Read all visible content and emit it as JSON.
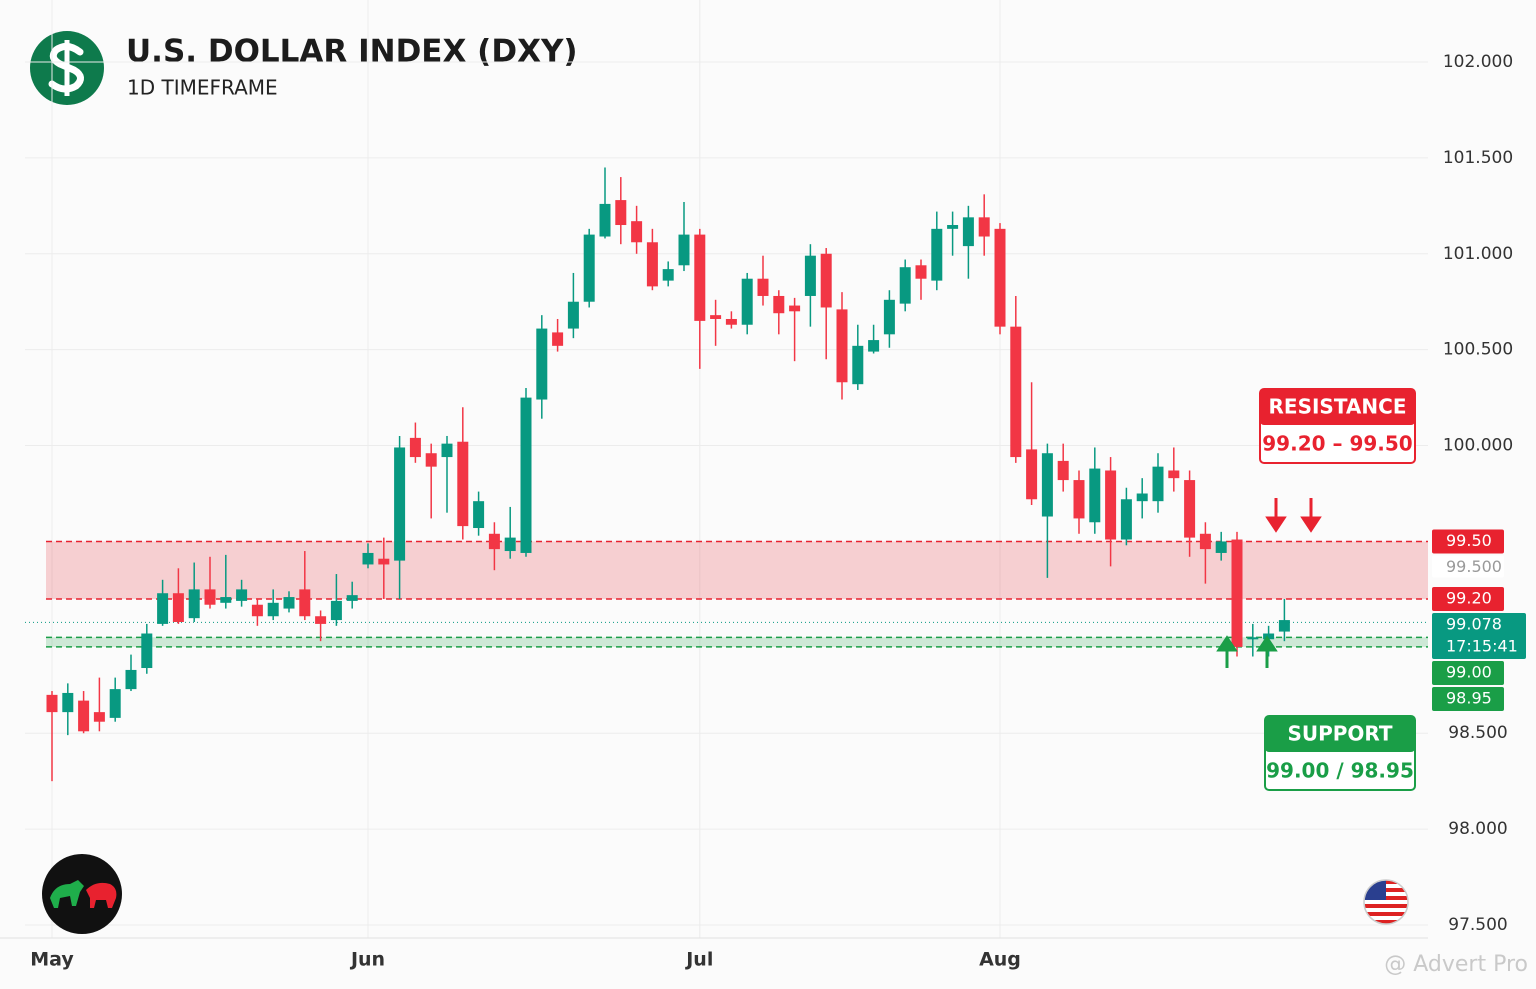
{
  "chart_data": {
    "type": "candlestick",
    "title": "U.S. DOLLAR INDEX (DXY)",
    "subtitle": "1D TIMEFRAME",
    "open": [
      98.7,
      98.61,
      98.67,
      98.61,
      98.58,
      98.73,
      98.84,
      99.07,
      99.23,
      99.1,
      99.25,
      99.18,
      99.19,
      99.17,
      99.11,
      99.15,
      99.25,
      99.11,
      99.09,
      99.19,
      99.38,
      99.41,
      99.4,
      100.04,
      99.96,
      99.94,
      100.02,
      99.57,
      99.54,
      99.45,
      99.44,
      100.24,
      100.59,
      100.61,
      100.75,
      101.09,
      101.28,
      101.17,
      101.06,
      100.86,
      100.94,
      101.1,
      100.68,
      100.66,
      100.63,
      100.87,
      100.78,
      100.73,
      100.78,
      101.0,
      100.71,
      100.32,
      100.49,
      100.58,
      100.74,
      100.94,
      100.86,
      101.13,
      101.04,
      101.19,
      101.13,
      100.62,
      99.98,
      99.63,
      99.92,
      99.82,
      99.6,
      99.87,
      99.51,
      99.71,
      99.71,
      99.87,
      99.82,
      99.54,
      99.44,
      99.51,
      98.99,
      98.99,
      99.03
    ],
    "high": [
      98.72,
      98.76,
      98.72,
      98.79,
      98.79,
      98.91,
      99.07,
      99.3,
      99.36,
      99.39,
      99.42,
      99.43,
      99.3,
      99.2,
      99.25,
      99.24,
      99.45,
      99.14,
      99.33,
      99.29,
      99.49,
      99.52,
      100.05,
      100.12,
      100.01,
      100.05,
      100.2,
      99.76,
      99.6,
      99.68,
      100.3,
      100.68,
      100.66,
      100.9,
      101.13,
      101.45,
      101.4,
      101.25,
      101.13,
      100.96,
      101.27,
      101.13,
      100.76,
      100.7,
      100.9,
      100.99,
      100.81,
      100.77,
      101.05,
      101.03,
      100.8,
      100.63,
      100.63,
      100.81,
      100.97,
      100.97,
      101.22,
      101.22,
      101.25,
      101.31,
      101.16,
      100.78,
      100.33,
      100.01,
      100.01,
      99.87,
      99.99,
      99.94,
      99.78,
      99.83,
      99.96,
      99.99,
      99.87,
      99.6,
      99.55,
      99.55,
      99.07,
      99.06,
      99.2
    ],
    "low": [
      98.25,
      98.49,
      98.5,
      98.51,
      98.56,
      98.72,
      98.81,
      99.06,
      99.07,
      99.08,
      99.15,
      99.15,
      99.16,
      99.06,
      99.09,
      99.13,
      99.09,
      98.98,
      99.06,
      99.15,
      99.36,
      99.2,
      99.2,
      99.91,
      99.62,
      99.65,
      99.51,
      99.53,
      99.35,
      99.41,
      99.42,
      100.14,
      100.49,
      100.56,
      100.72,
      101.08,
      101.05,
      101.0,
      100.81,
      100.83,
      100.91,
      100.4,
      100.52,
      100.61,
      100.58,
      100.73,
      100.58,
      100.44,
      100.62,
      100.45,
      100.24,
      100.29,
      100.48,
      100.51,
      100.7,
      100.76,
      100.81,
      100.99,
      100.87,
      100.99,
      100.58,
      99.91,
      99.69,
      99.31,
      99.76,
      99.54,
      99.54,
      99.37,
      99.48,
      99.62,
      99.65,
      99.76,
      99.42,
      99.28,
      99.4,
      98.9,
      98.9,
      98.9,
      98.98
    ],
    "close": [
      98.61,
      98.71,
      98.51,
      98.56,
      98.73,
      98.83,
      99.02,
      99.23,
      99.08,
      99.25,
      99.17,
      99.21,
      99.25,
      99.11,
      99.18,
      99.21,
      99.11,
      99.07,
      99.19,
      99.22,
      99.44,
      99.38,
      99.99,
      99.94,
      99.89,
      100.01,
      99.58,
      99.71,
      99.46,
      99.52,
      100.25,
      100.61,
      100.52,
      100.75,
      101.1,
      101.26,
      101.15,
      101.06,
      100.83,
      100.92,
      101.1,
      100.65,
      100.66,
      100.63,
      100.87,
      100.78,
      100.69,
      100.7,
      100.99,
      100.72,
      100.33,
      100.52,
      100.55,
      100.76,
      100.93,
      100.87,
      101.13,
      101.15,
      101.19,
      101.09,
      100.62,
      99.94,
      99.72,
      99.96,
      99.82,
      99.62,
      99.88,
      99.51,
      99.72,
      99.75,
      99.89,
      99.83,
      99.52,
      99.46,
      99.5,
      98.95,
      99.0,
      99.02,
      99.09
    ],
    "up_color": "#089981",
    "down_color": "#f23645",
    "xticks": [
      {
        "value": 0,
        "label": "May"
      },
      {
        "value": 20,
        "label": "Jun"
      },
      {
        "value": 41,
        "label": "Jul"
      },
      {
        "value": 60,
        "label": "Aug"
      }
    ],
    "ylim": [
      97.5,
      102
    ],
    "yticks": [
      {
        "value": 97.5,
        "label": "97.500"
      },
      {
        "value": 98,
        "label": "98.000"
      },
      {
        "value": 98.5,
        "label": "98.500"
      },
      {
        "value": 100,
        "label": "100.000"
      },
      {
        "value": 100.5,
        "label": "100.500"
      },
      {
        "value": 101,
        "label": "101.000"
      },
      {
        "value": 101.5,
        "label": "101.500"
      },
      {
        "value": 102,
        "label": "102.000"
      }
    ],
    "grid": true,
    "last_price": {
      "value": 99.078,
      "time": "17:15:41"
    },
    "zones": [
      {
        "name": "RESISTANCE",
        "range_label": "99.20 – 99.50",
        "color": "#e8222f",
        "levels": [
          {
            "value": 99.5,
            "label": "99.50"
          },
          {
            "value": 99.2,
            "label": "99.20"
          }
        ]
      },
      {
        "name": "SUPPORT",
        "range_label": "99.00 / 98.95",
        "color": "#1a9e47",
        "levels": [
          {
            "value": 99.0,
            "label": "99.00"
          },
          {
            "value": 98.95,
            "label": "98.95"
          }
        ]
      }
    ],
    "crosshair": {
      "value": 99.5,
      "label": "99.500"
    },
    "watermark": "@ Advert Pro"
  }
}
